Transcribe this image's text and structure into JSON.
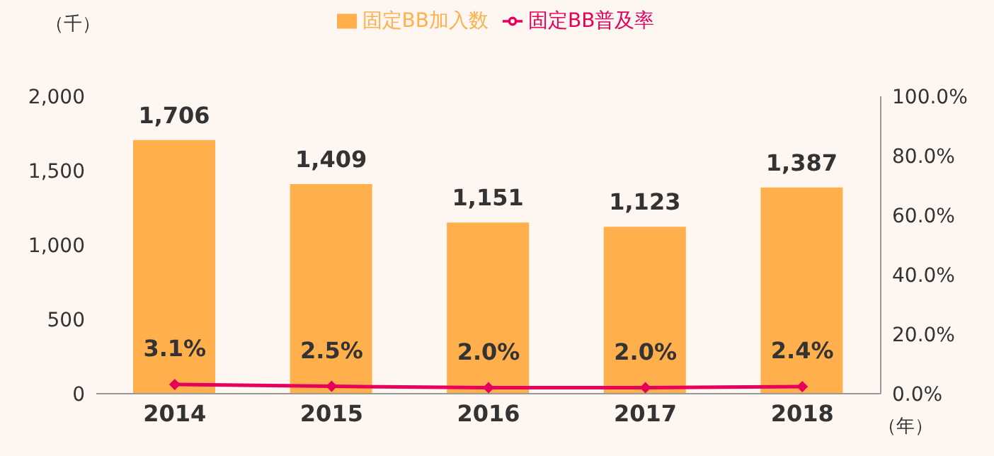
{
  "chart_data": {
    "type": "bar",
    "ylabel": "（千）",
    "xlabel": "（年）",
    "categories": [
      "2014",
      "2015",
      "2016",
      "2017",
      "2018"
    ],
    "series": [
      {
        "name": "固定BB加入数",
        "color": "#ffb04c",
        "values": [
          1706,
          1409,
          1151,
          1123,
          1387
        ],
        "value_labels": [
          "1,706",
          "1,409",
          "1,151",
          "1,123",
          "1,387"
        ]
      },
      {
        "name": "固定BB普及率",
        "type": "line",
        "axis": "y2",
        "color": "#e6005c",
        "marker": "diamond",
        "values": [
          3.1,
          2.5,
          2.0,
          2.0,
          2.4
        ],
        "value_labels": [
          "3.1%",
          "2.5%",
          "2.0%",
          "2.0%",
          "2.4%"
        ]
      }
    ],
    "ylim": [
      0,
      2000
    ],
    "yticks": [
      0,
      500,
      {
        "value": 1000,
        "label": "1,000"
      },
      {
        "value": 1500,
        "label": "1,500"
      },
      {
        "value": 2000,
        "label": "2,000"
      }
    ],
    "y2lim": [
      0,
      100
    ],
    "y2ticks": [
      {
        "value": 0,
        "label": "0.0%"
      },
      {
        "value": 20,
        "label": "20.0%"
      },
      {
        "value": 40,
        "label": "40.0%"
      },
      {
        "value": 60,
        "label": "60.0%"
      },
      {
        "value": 80,
        "label": "80.0%"
      },
      {
        "value": 100,
        "label": "100.0%"
      }
    ],
    "grid": false,
    "legend": "top"
  }
}
